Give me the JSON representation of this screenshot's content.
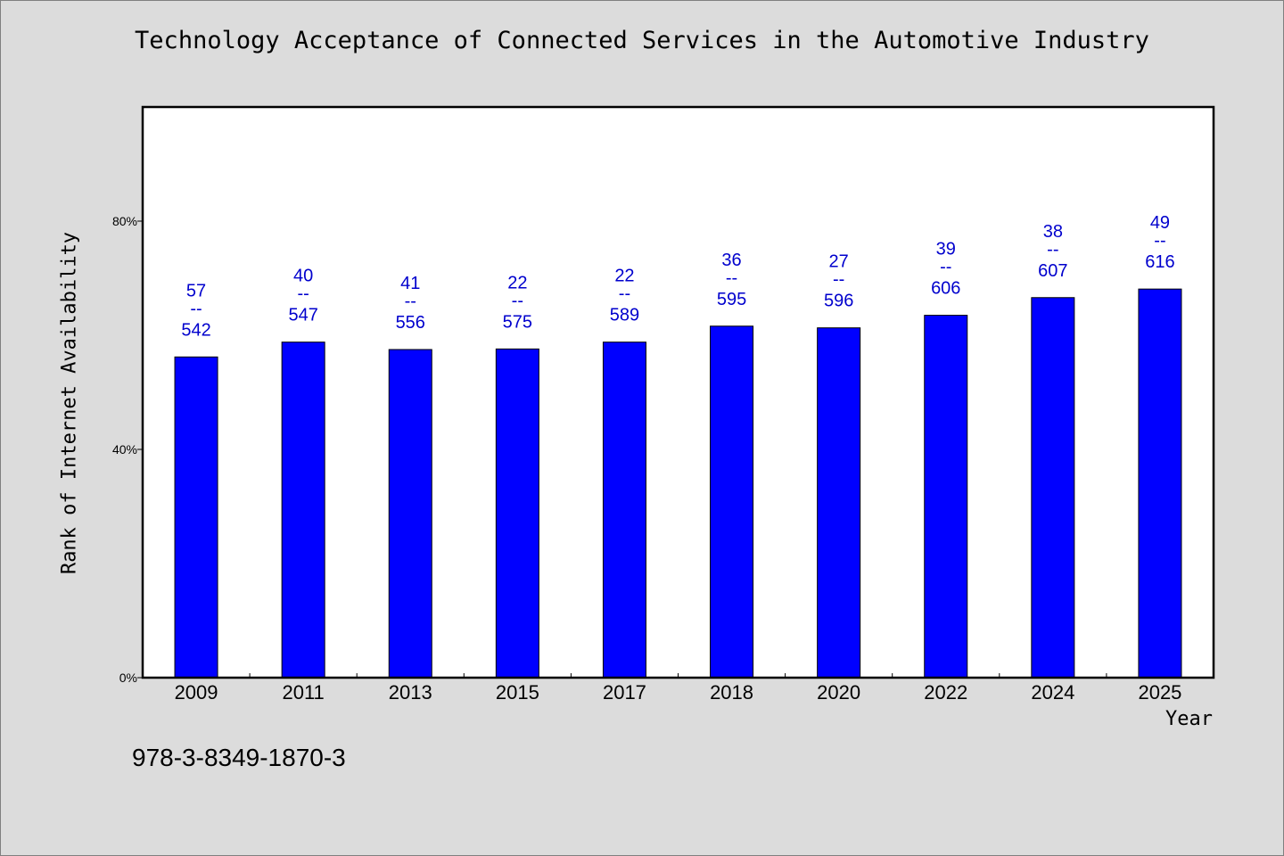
{
  "chart_data": {
    "type": "bar",
    "title": "Technology Acceptance of Connected Services in the Automotive Industry",
    "xlabel": "Year",
    "ylabel": "Rank of Internet Availability",
    "categories": [
      "2009",
      "2011",
      "2013",
      "2015",
      "2017",
      "2018",
      "2020",
      "2022",
      "2024",
      "2025"
    ],
    "values": [
      56.2,
      58.8,
      57.5,
      57.6,
      58.8,
      61.6,
      61.3,
      63.5,
      66.6,
      68.1
    ],
    "data_labels": [
      {
        "top": "57",
        "sep": "--",
        "bottom": "542"
      },
      {
        "top": "40",
        "sep": "--",
        "bottom": "547"
      },
      {
        "top": "41",
        "sep": "--",
        "bottom": "556"
      },
      {
        "top": "22",
        "sep": "--",
        "bottom": "575"
      },
      {
        "top": "22",
        "sep": "--",
        "bottom": "589"
      },
      {
        "top": "36",
        "sep": "--",
        "bottom": "595"
      },
      {
        "top": "27",
        "sep": "--",
        "bottom": "596"
      },
      {
        "top": "39",
        "sep": "--",
        "bottom": "606"
      },
      {
        "top": "38",
        "sep": "--",
        "bottom": "607"
      },
      {
        "top": "49",
        "sep": "--",
        "bottom": "616"
      }
    ],
    "ylim": [
      0,
      100
    ],
    "yticks": [
      {
        "value": 0,
        "label": "0%"
      },
      {
        "value": 40,
        "label": "40%"
      },
      {
        "value": 80,
        "label": "80%"
      }
    ],
    "grid": false,
    "bar_color": "#0000ff",
    "label_color": "#0000cd"
  },
  "footnote": "978-3-8349-1870-3"
}
